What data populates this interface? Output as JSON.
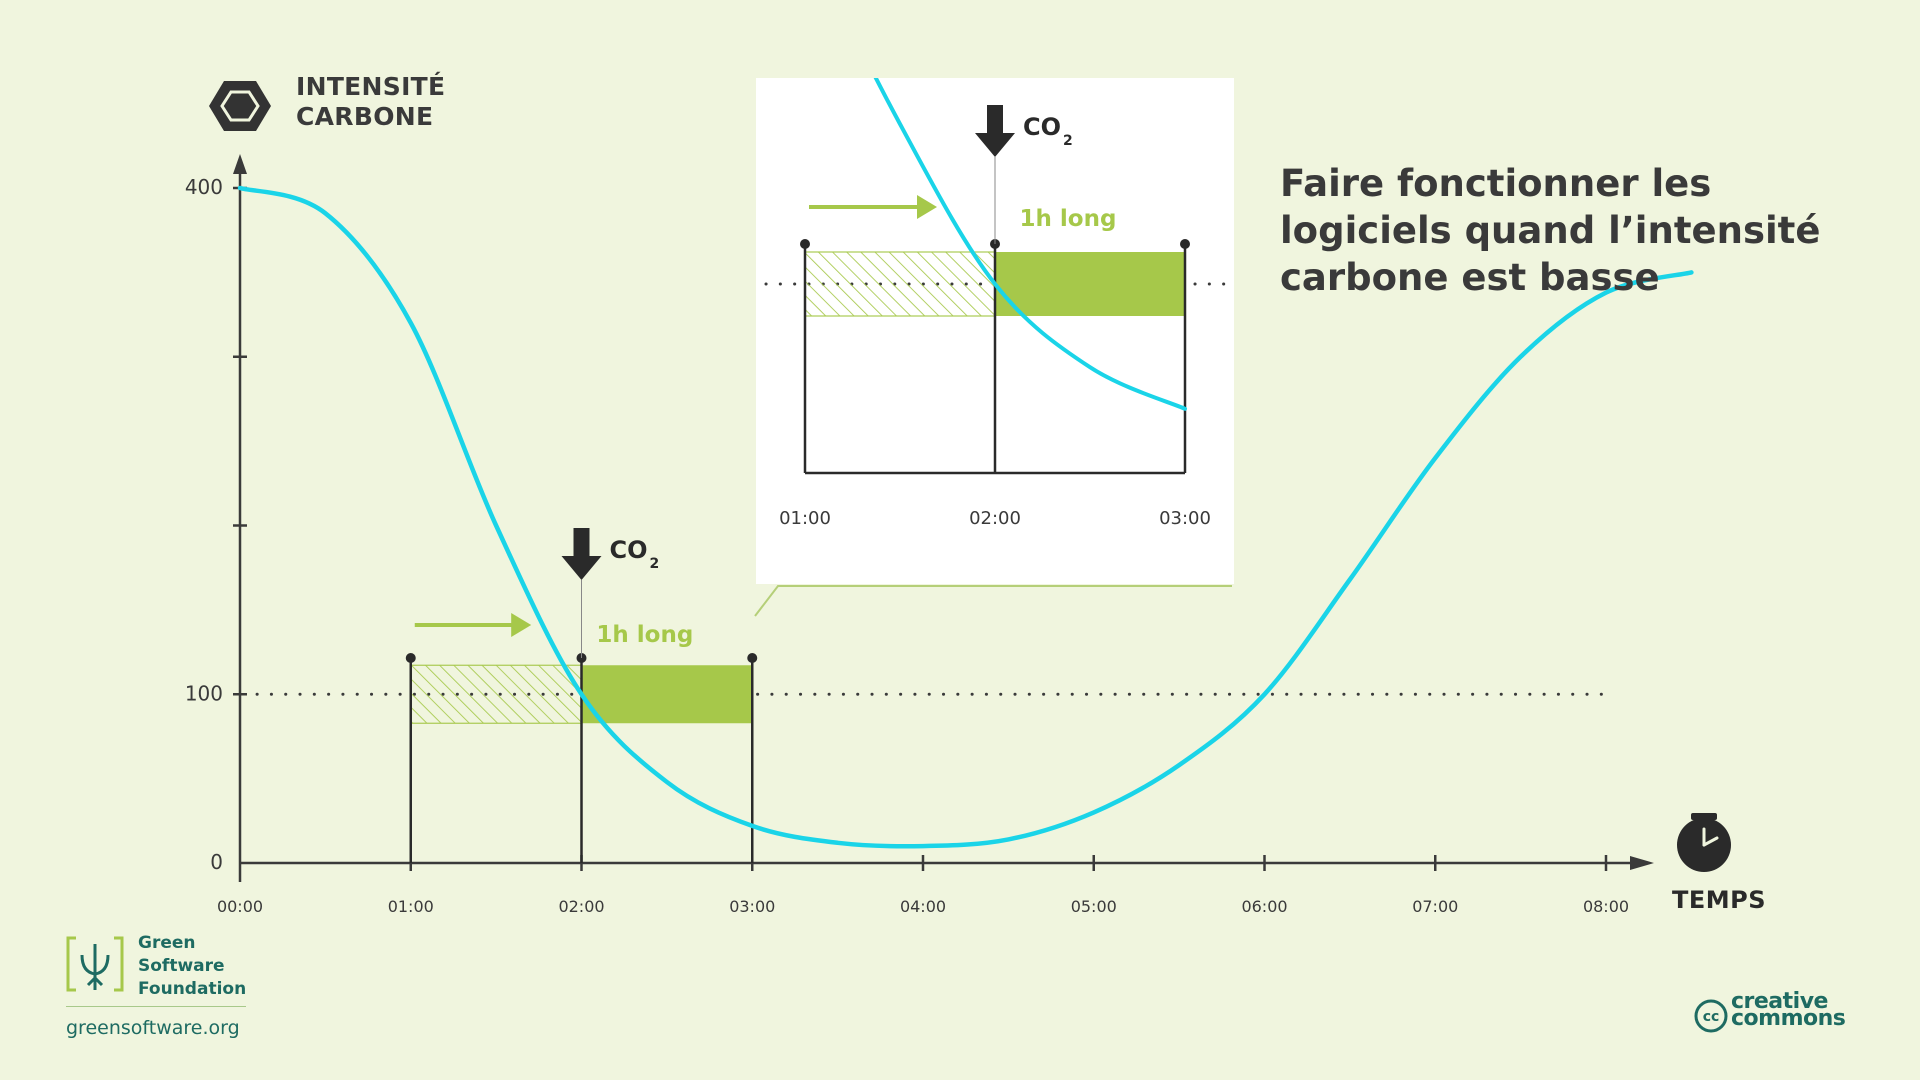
{
  "header": {
    "y_axis_title_line1": "INTENSITÉ",
    "y_axis_title_line2": "CARBONE",
    "x_axis_title": "TEMPS",
    "headline": "Faire fonctionner les logiciels quand l’intensité carbone est basse"
  },
  "chart_data": {
    "type": "line",
    "x_tick_labels": [
      "00:00",
      "01:00",
      "02:00",
      "03:00",
      "04:00",
      "05:00",
      "06:00",
      "07:00",
      "08:00"
    ],
    "y_tick_labels": [
      "0",
      "100",
      "400"
    ],
    "ylim": [
      0,
      400
    ],
    "xlim": [
      "00:00",
      "08:00"
    ],
    "threshold": 100,
    "series": [
      {
        "color": "#1ad4e8",
        "x": [
          "00:00",
          "00:30",
          "01:00",
          "01:30",
          "02:00",
          "02:30",
          "03:00",
          "03:30",
          "04:00",
          "04:30",
          "05:00",
          "05:30",
          "06:00",
          "06:30",
          "07:00",
          "07:30",
          "08:00",
          "08:30"
        ],
        "values": [
          400,
          385,
          320,
          200,
          100,
          48,
          22,
          12,
          10,
          14,
          30,
          58,
          100,
          168,
          240,
          300,
          338,
          350
        ]
      }
    ],
    "annotations": {
      "co2_label_main": "CO",
      "co2_subscript": "2",
      "duration_label": "1h long",
      "job_original_start": "01:00",
      "job_shifted_start": "02:00",
      "job_end": "03:00"
    },
    "inset": {
      "x_tick_labels": [
        "01:00",
        "02:00",
        "03:00"
      ],
      "co2_label_main": "CO",
      "co2_subscript": "2",
      "duration_label": "1h long"
    },
    "colors": {
      "curve": "#1ad4e8",
      "job_fill": "#a6c84a",
      "hatch": "#a6c84a",
      "arrow": "#a6c84a",
      "axis": "#3a3a3a"
    }
  },
  "footer": {
    "gsf_line1": "Green",
    "gsf_line2": "Software",
    "gsf_line3": "Foundation",
    "gsf_url": "greensoftware.org",
    "cc_line1": "creative",
    "cc_line2": "commons",
    "cc_badge": "cc"
  }
}
